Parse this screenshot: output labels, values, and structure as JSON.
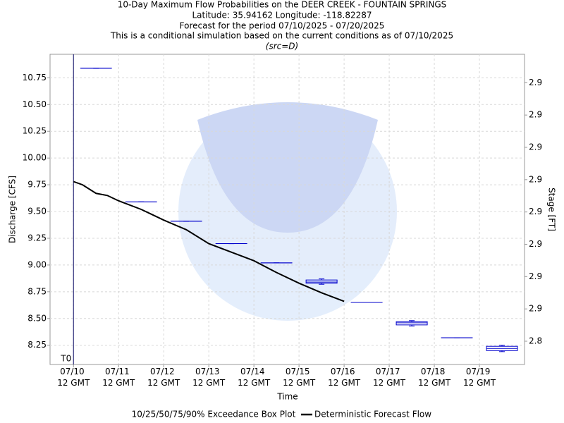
{
  "chart_data": {
    "type": "box",
    "title": "10-Day Maximum Flow Probabilities on the DEER CREEK - FOUNTAIN SPRINGS",
    "subtitle": [
      "Latitude: 35.94162 Longitude: -118.82287",
      "Forecast for the period 07/10/2025 - 07/20/2025",
      "This is a conditional simulation based on the current conditions as of 07/10/2025"
    ],
    "source_note": "(src=D)",
    "x_label": "Time",
    "y_label": "Discharge [CFS]",
    "y2_label": "Stage [FT]",
    "xlim": [
      -0.52,
      10.0
    ],
    "xticks": [
      {
        "value": 0,
        "label": "07/10 12 GMT"
      },
      {
        "value": 1,
        "label": "07/11 12 GMT"
      },
      {
        "value": 2,
        "label": "07/12 12 GMT"
      },
      {
        "value": 3,
        "label": "07/13 12 GMT"
      },
      {
        "value": 4,
        "label": "07/14 12 GMT"
      },
      {
        "value": 5,
        "label": "07/15 12 GMT"
      },
      {
        "value": 6,
        "label": "07/16 12 GMT"
      },
      {
        "value": 7,
        "label": "07/17 12 GMT"
      },
      {
        "value": 8,
        "label": "07/18 12 GMT"
      },
      {
        "value": 9,
        "label": "07/19 12 GMT"
      }
    ],
    "ylim": [
      8.07,
      10.97
    ],
    "yticks": [
      8.25,
      8.5,
      8.75,
      9,
      9.25,
      9.5,
      9.75,
      10,
      10.25,
      10.5,
      10.75
    ],
    "yticks_labels": [
      "8.25",
      "8.50",
      "8.75",
      "9.00",
      "9.25",
      "9.50",
      "9.75",
      "10.00",
      "10.25",
      "10.50",
      "10.75"
    ],
    "y2lim": [
      2.831,
      2.951
    ],
    "y2ticks": [
      {
        "value": 2.84,
        "label": "2.8"
      },
      {
        "value": 2.8525,
        "label": "2.9"
      },
      {
        "value": 2.865,
        "label": "2.9"
      },
      {
        "value": 2.8775,
        "label": "2.9"
      },
      {
        "value": 2.89,
        "label": "2.9"
      },
      {
        "value": 2.9025,
        "label": "2.9"
      },
      {
        "value": 2.915,
        "label": "2.9"
      },
      {
        "value": 2.9275,
        "label": "2.9"
      },
      {
        "value": 2.94,
        "label": "2.9"
      }
    ],
    "grid": true,
    "annotations": [
      {
        "text": "T0",
        "x": 0
      }
    ],
    "series": [
      {
        "name": "10/25/50/75/90% Exceedance Box Plot",
        "type": "box",
        "color": "#0000cc",
        "x": [
          0.5,
          1.5,
          2.5,
          3.5,
          4.5,
          5.5,
          6.5,
          7.5,
          8.5,
          9.5
        ],
        "p10": [
          10.84,
          9.59,
          9.41,
          9.2,
          9.02,
          8.82,
          8.65,
          8.43,
          8.32,
          8.19
        ],
        "p25": [
          10.84,
          9.59,
          9.41,
          9.2,
          9.02,
          8.83,
          8.65,
          8.44,
          8.32,
          8.2
        ],
        "p50": [
          10.84,
          9.59,
          9.41,
          9.2,
          9.02,
          8.84,
          8.65,
          8.46,
          8.32,
          8.22
        ],
        "p75": [
          10.84,
          9.59,
          9.41,
          9.2,
          9.02,
          8.86,
          8.65,
          8.47,
          8.32,
          8.24
        ],
        "p90": [
          10.84,
          9.59,
          9.41,
          9.2,
          9.02,
          8.87,
          8.65,
          8.48,
          8.32,
          8.25
        ]
      },
      {
        "name": "Deterministic Forecast Flow",
        "type": "line",
        "color": "#000000",
        "x": [
          0,
          0.2,
          0.5,
          0.75,
          1,
          1.5,
          1.75,
          2,
          2.5,
          3,
          3.5,
          4,
          4.5,
          5,
          5.5,
          6
        ],
        "values": [
          9.78,
          9.75,
          9.67,
          9.65,
          9.6,
          9.52,
          9.47,
          9.42,
          9.33,
          9.2,
          9.12,
          9.04,
          8.93,
          8.83,
          8.74,
          8.66
        ]
      }
    ]
  }
}
